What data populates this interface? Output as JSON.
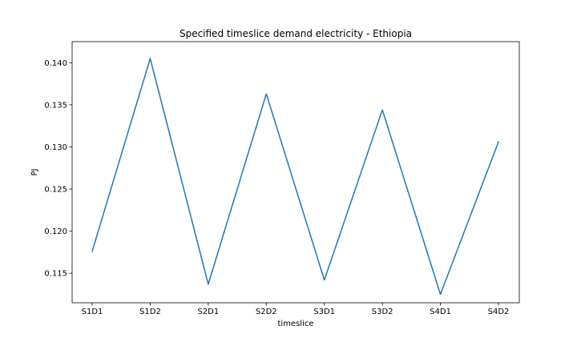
{
  "chart_data": {
    "type": "line",
    "title": "Specified timeslice demand electricity - Ethiopia",
    "xlabel": "timeslice",
    "ylabel": "PJ",
    "categories": [
      "S1D1",
      "S1D2",
      "S2D1",
      "S2D2",
      "S3D1",
      "S3D2",
      "S4D1",
      "S4D2"
    ],
    "series": [
      {
        "values": [
          0.1176,
          0.1405,
          0.1137,
          0.1363,
          0.1142,
          0.1344,
          0.1125,
          0.1306
        ],
        "color": "#1f77b4"
      }
    ],
    "ylim": [
      0.1115,
      0.1425
    ],
    "yticks": [
      0.115,
      0.12,
      0.125,
      0.13,
      0.135,
      0.14
    ],
    "ytick_labels": [
      "0.115",
      "0.120",
      "0.125",
      "0.130",
      "0.135",
      "0.140"
    ],
    "grid": false,
    "legend": "none"
  }
}
